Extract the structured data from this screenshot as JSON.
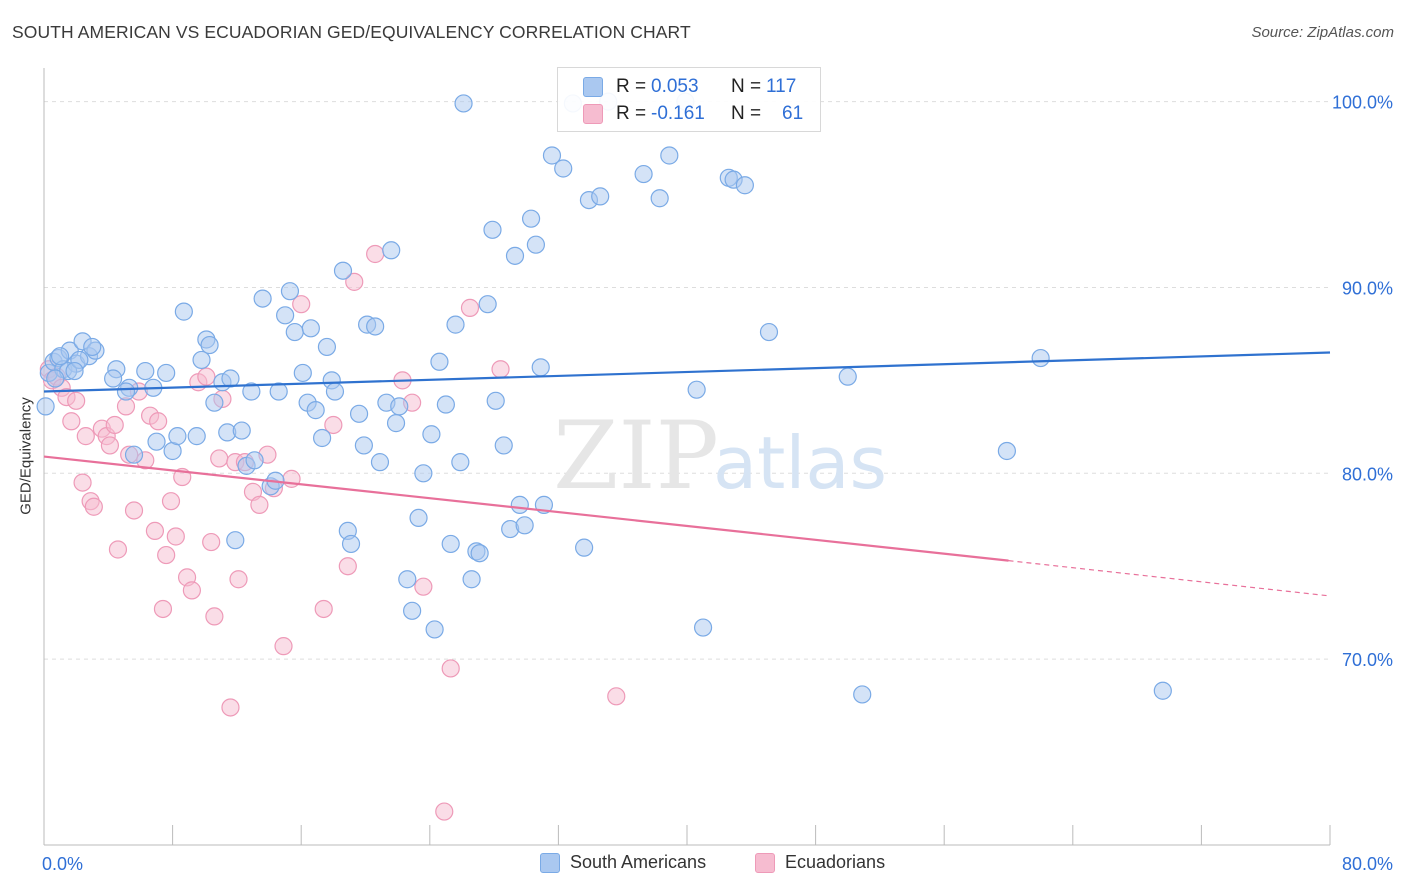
{
  "header": {
    "title": "SOUTH AMERICAN VS ECUADORIAN GED/EQUIVALENCY CORRELATION CHART",
    "source": "Source: ZipAtlas.com"
  },
  "watermark": {
    "zip": "ZIP",
    "atlas": "atlas"
  },
  "colors": {
    "blue_fill": "#aac8f0",
    "blue_stroke": "#7aaae6",
    "blue_line": "#2f72cf",
    "pink_fill": "#f6bcd0",
    "pink_stroke": "#ee9ab8",
    "pink_line": "#e8709a",
    "value_text": "#2f6fd6",
    "grid": "#dddddd"
  },
  "legend": {
    "rows": [
      {
        "r_label": "R =",
        "r_value": "0.053",
        "n_label": "N =",
        "n_value": "117"
      },
      {
        "r_label": "R =",
        "r_value": "-0.161",
        "n_label": "N =",
        "n_value": "61"
      }
    ]
  },
  "bottom_legend": {
    "items": [
      "South Americans",
      "Ecuadorians"
    ]
  },
  "chart_data": {
    "type": "scatter",
    "title": "SOUTH AMERICAN VS ECUADORIAN GED/EQUIVALENCY CORRELATION CHART",
    "xlabel": "",
    "ylabel": "GED/Equivalency",
    "xlim": [
      0,
      80
    ],
    "ylim": [
      60,
      101.7
    ],
    "x_tick_labels": [
      "0.0%",
      "80.0%"
    ],
    "y_ticks": [
      70,
      80,
      90,
      100
    ],
    "y_tick_labels": [
      "70.0%",
      "80.0%",
      "90.0%",
      "100.0%"
    ],
    "grid": true,
    "legend_position": "top-center",
    "series": [
      {
        "name": "South Americans",
        "r": 0.053,
        "n": 117,
        "trend": {
          "x": [
            0,
            80
          ],
          "y": [
            84.4,
            86.5
          ]
        },
        "points": [
          [
            0.1,
            83.6
          ],
          [
            0.3,
            85.4
          ],
          [
            0.6,
            86.0
          ],
          [
            0.9,
            86.2
          ],
          [
            1.2,
            85.6
          ],
          [
            1.6,
            86.6
          ],
          [
            2.0,
            85.9
          ],
          [
            2.4,
            87.1
          ],
          [
            2.8,
            86.3
          ],
          [
            3.2,
            86.6
          ],
          [
            1.5,
            85.5
          ],
          [
            2.2,
            86.1
          ],
          [
            0.7,
            85.1
          ],
          [
            1.0,
            86.3
          ],
          [
            1.9,
            85.5
          ],
          [
            3.0,
            86.8
          ],
          [
            4.5,
            85.6
          ],
          [
            4.3,
            85.1
          ],
          [
            5.3,
            84.6
          ],
          [
            5.1,
            84.4
          ],
          [
            5.6,
            81.0
          ],
          [
            6.3,
            85.5
          ],
          [
            6.8,
            84.6
          ],
          [
            7.0,
            81.7
          ],
          [
            7.6,
            85.4
          ],
          [
            8.0,
            81.2
          ],
          [
            8.3,
            82.0
          ],
          [
            8.7,
            88.7
          ],
          [
            9.5,
            82.0
          ],
          [
            9.8,
            86.1
          ],
          [
            10.1,
            87.2
          ],
          [
            10.3,
            86.9
          ],
          [
            10.6,
            83.8
          ],
          [
            11.1,
            84.9
          ],
          [
            11.4,
            82.2
          ],
          [
            11.6,
            85.1
          ],
          [
            11.9,
            76.4
          ],
          [
            12.3,
            82.3
          ],
          [
            12.6,
            80.4
          ],
          [
            12.9,
            84.4
          ],
          [
            13.1,
            80.7
          ],
          [
            13.6,
            89.4
          ],
          [
            14.1,
            79.3
          ],
          [
            14.4,
            79.6
          ],
          [
            14.6,
            84.4
          ],
          [
            15.0,
            88.5
          ],
          [
            15.3,
            89.8
          ],
          [
            15.6,
            87.6
          ],
          [
            16.1,
            85.4
          ],
          [
            16.4,
            83.8
          ],
          [
            16.6,
            87.8
          ],
          [
            16.9,
            83.4
          ],
          [
            17.3,
            81.9
          ],
          [
            17.6,
            86.8
          ],
          [
            17.9,
            85.0
          ],
          [
            18.1,
            84.4
          ],
          [
            18.6,
            90.9
          ],
          [
            18.9,
            76.9
          ],
          [
            19.1,
            76.2
          ],
          [
            19.6,
            83.2
          ],
          [
            19.9,
            81.5
          ],
          [
            20.1,
            88.0
          ],
          [
            20.6,
            87.9
          ],
          [
            20.9,
            80.6
          ],
          [
            21.3,
            83.8
          ],
          [
            21.6,
            92.0
          ],
          [
            21.9,
            82.7
          ],
          [
            22.1,
            83.6
          ],
          [
            22.6,
            74.3
          ],
          [
            22.9,
            72.6
          ],
          [
            23.3,
            77.6
          ],
          [
            23.6,
            80.0
          ],
          [
            24.1,
            82.1
          ],
          [
            24.3,
            71.6
          ],
          [
            24.6,
            86.0
          ],
          [
            25.0,
            83.7
          ],
          [
            25.3,
            76.2
          ],
          [
            25.6,
            88.0
          ],
          [
            25.9,
            80.6
          ],
          [
            26.1,
            99.9
          ],
          [
            26.6,
            74.3
          ],
          [
            26.9,
            75.8
          ],
          [
            27.1,
            75.7
          ],
          [
            27.6,
            89.1
          ],
          [
            27.9,
            93.1
          ],
          [
            28.1,
            83.9
          ],
          [
            28.6,
            81.5
          ],
          [
            29.0,
            77.0
          ],
          [
            29.3,
            91.7
          ],
          [
            29.6,
            78.3
          ],
          [
            29.9,
            77.2
          ],
          [
            30.3,
            93.7
          ],
          [
            30.6,
            92.3
          ],
          [
            30.9,
            85.7
          ],
          [
            31.1,
            78.3
          ],
          [
            31.6,
            97.1
          ],
          [
            32.3,
            96.4
          ],
          [
            32.9,
            99.9
          ],
          [
            33.6,
            76.0
          ],
          [
            33.9,
            94.7
          ],
          [
            34.6,
            94.9
          ],
          [
            35.1,
            100.0
          ],
          [
            37.3,
            96.1
          ],
          [
            38.3,
            94.8
          ],
          [
            38.9,
            97.1
          ],
          [
            39.9,
            100.0
          ],
          [
            40.6,
            84.5
          ],
          [
            41.0,
            71.7
          ],
          [
            42.6,
            95.9
          ],
          [
            42.9,
            95.8
          ],
          [
            43.6,
            95.5
          ],
          [
            45.1,
            87.6
          ],
          [
            50.0,
            85.2
          ],
          [
            50.9,
            68.1
          ],
          [
            59.9,
            81.2
          ],
          [
            62.0,
            86.2
          ],
          [
            69.6,
            68.3
          ]
        ]
      },
      {
        "name": "Ecuadorians",
        "r": -0.161,
        "n": 61,
        "trend": {
          "x": [
            0,
            60
          ],
          "y": [
            80.9,
            75.3
          ]
        },
        "trend_dashed": {
          "x": [
            60,
            80
          ],
          "y": [
            75.3,
            73.4
          ]
        },
        "points": [
          [
            0.3,
            85.6
          ],
          [
            0.5,
            85.0
          ],
          [
            0.8,
            85.2
          ],
          [
            1.1,
            84.6
          ],
          [
            1.4,
            84.1
          ],
          [
            1.7,
            82.8
          ],
          [
            2.0,
            83.9
          ],
          [
            2.4,
            79.5
          ],
          [
            2.6,
            82.0
          ],
          [
            2.9,
            78.5
          ],
          [
            3.1,
            78.2
          ],
          [
            3.6,
            82.4
          ],
          [
            3.9,
            82.0
          ],
          [
            4.1,
            81.5
          ],
          [
            4.4,
            82.6
          ],
          [
            4.6,
            75.9
          ],
          [
            5.1,
            83.6
          ],
          [
            5.3,
            81.0
          ],
          [
            5.6,
            78.0
          ],
          [
            5.9,
            84.4
          ],
          [
            6.3,
            80.7
          ],
          [
            6.6,
            83.1
          ],
          [
            6.9,
            76.9
          ],
          [
            7.1,
            82.8
          ],
          [
            7.4,
            72.7
          ],
          [
            7.6,
            75.6
          ],
          [
            7.9,
            78.5
          ],
          [
            8.2,
            76.6
          ],
          [
            8.6,
            79.8
          ],
          [
            8.9,
            74.4
          ],
          [
            9.2,
            73.7
          ],
          [
            9.6,
            84.9
          ],
          [
            10.1,
            85.2
          ],
          [
            10.4,
            76.3
          ],
          [
            10.6,
            72.3
          ],
          [
            10.9,
            80.8
          ],
          [
            11.1,
            84.0
          ],
          [
            11.6,
            67.4
          ],
          [
            11.9,
            80.6
          ],
          [
            12.1,
            74.3
          ],
          [
            12.5,
            80.6
          ],
          [
            13.0,
            79.0
          ],
          [
            13.4,
            78.3
          ],
          [
            13.9,
            81.0
          ],
          [
            14.3,
            79.2
          ],
          [
            14.9,
            70.7
          ],
          [
            15.4,
            79.7
          ],
          [
            16.0,
            89.1
          ],
          [
            17.4,
            72.7
          ],
          [
            18.0,
            82.6
          ],
          [
            18.9,
            75.0
          ],
          [
            19.3,
            90.3
          ],
          [
            20.6,
            91.8
          ],
          [
            22.3,
            85.0
          ],
          [
            22.9,
            83.8
          ],
          [
            23.6,
            73.9
          ],
          [
            24.9,
            61.8
          ],
          [
            25.3,
            69.5
          ],
          [
            26.5,
            88.9
          ],
          [
            28.4,
            85.6
          ],
          [
            35.6,
            68.0
          ]
        ]
      }
    ]
  }
}
